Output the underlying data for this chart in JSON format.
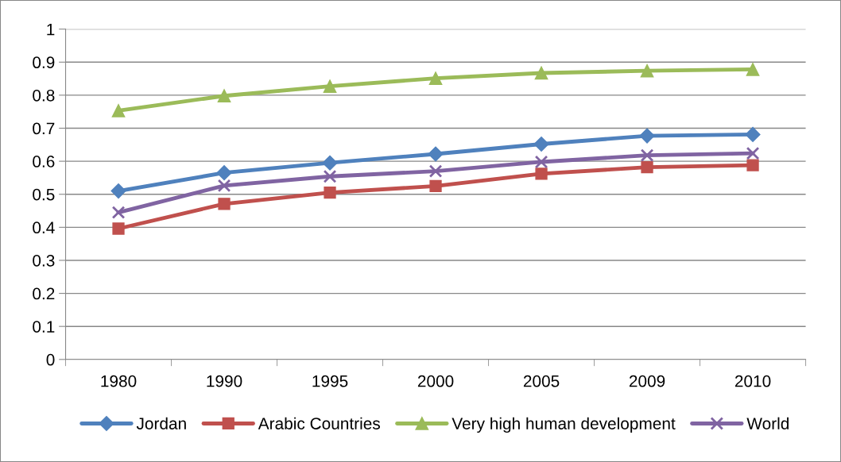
{
  "chart_data": {
    "type": "line",
    "categories": [
      "1980",
      "1990",
      "1995",
      "2000",
      "2005",
      "2009",
      "2010"
    ],
    "series": [
      {
        "name": "Jordan",
        "color": "#4f81bd",
        "marker": "diamond",
        "values": [
          0.51,
          0.565,
          0.595,
          0.622,
          0.652,
          0.677,
          0.681
        ]
      },
      {
        "name": "Arabic Countries",
        "color": "#c0504d",
        "marker": "square",
        "values": [
          0.396,
          0.471,
          0.505,
          0.525,
          0.562,
          0.582,
          0.588
        ]
      },
      {
        "name": "Very high human development",
        "color": "#9bbb59",
        "marker": "triangle",
        "values": [
          0.753,
          0.798,
          0.827,
          0.851,
          0.867,
          0.874,
          0.878
        ]
      },
      {
        "name": "World",
        "color": "#8064a2",
        "marker": "cross",
        "values": [
          0.445,
          0.526,
          0.554,
          0.57,
          0.598,
          0.618,
          0.624
        ]
      }
    ],
    "ylim": [
      0,
      1
    ],
    "yticks": [
      0,
      0.1,
      0.2,
      0.3,
      0.4,
      0.5,
      0.6,
      0.7,
      0.8,
      0.9,
      1
    ],
    "grid": "y",
    "legend": "bottom",
    "line_style": "solid"
  }
}
